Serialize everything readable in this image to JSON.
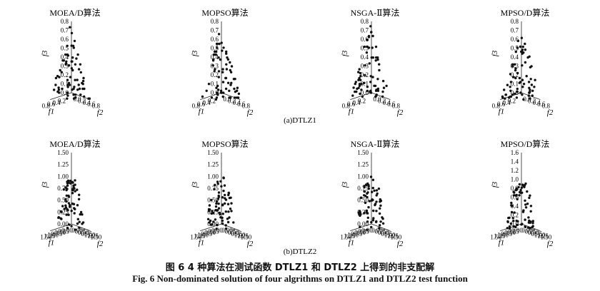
{
  "figure": {
    "caption_cn": "图 6   4 种算法在测试函数 DTLZ1 和 DTLZ2 上得到的非支配解",
    "caption_en": "Fig. 6   Non-dominated solution of four algrithms on DTLZ1 and DTLZ2 test function"
  },
  "chart_data": [
    {
      "type": "scatter",
      "panel": "(a)",
      "subtitle": "(a)DTLZ1",
      "title": "MOEA/D算法",
      "xlabel": "f1",
      "ylabel": "f2",
      "zlabel": "f3",
      "x_ticks": [
        "0.2",
        "0.4",
        "0.6",
        "0.8"
      ],
      "y_ticks": [
        "0.8",
        "0.6",
        "0.4",
        "0.2",
        "0.0"
      ],
      "z_ticks": [
        "0.0",
        "0.1",
        "0.2",
        "0.3",
        "0.4",
        "0.5",
        "0.6",
        "0.7",
        "0.8"
      ],
      "xlim": [
        0,
        0.8
      ],
      "ylim": [
        0,
        0.8
      ],
      "zlim": [
        0,
        0.8
      ],
      "front": "linear",
      "seed": 11,
      "points": []
    },
    {
      "type": "scatter",
      "panel": "(a)",
      "title": "MOPSO算法",
      "xlabel": "f1",
      "ylabel": "f2",
      "zlabel": "f3",
      "x_ticks": [
        "0.2",
        "0.4",
        "0.6",
        "0.8"
      ],
      "y_ticks": [
        "0.8",
        "0.6",
        "0.4",
        "0.2",
        "0.0"
      ],
      "z_ticks": [
        "0.0",
        "0.1",
        "0.2",
        "0.3",
        "0.4",
        "0.5",
        "0.6",
        "0.7",
        "0.8"
      ],
      "xlim": [
        0,
        0.8
      ],
      "ylim": [
        0,
        0.8
      ],
      "zlim": [
        0,
        0.8
      ],
      "front": "linear",
      "seed": 23,
      "points": []
    },
    {
      "type": "scatter",
      "panel": "(a)",
      "title": "NSGA-Ⅱ算法",
      "xlabel": "f1",
      "ylabel": "f2",
      "zlabel": "f3",
      "x_ticks": [
        "0.2",
        "0.4",
        "0.6",
        "0.8"
      ],
      "y_ticks": [
        "0.8",
        "0.6",
        "0.4",
        "0.2",
        "0.0"
      ],
      "z_ticks": [
        "0.0",
        "0.1",
        "0.2",
        "0.3",
        "0.4",
        "0.5",
        "0.6",
        "0.7",
        "0.8"
      ],
      "xlim": [
        0,
        0.8
      ],
      "ylim": [
        0,
        0.8
      ],
      "zlim": [
        0,
        0.8
      ],
      "front": "linear",
      "seed": 37,
      "points": []
    },
    {
      "type": "scatter",
      "panel": "(a)",
      "title": "MPSO/D算法",
      "xlabel": "f1",
      "ylabel": "f2",
      "zlabel": "f3",
      "x_ticks": [
        "0.2",
        "0.4",
        "0.6",
        "0.8"
      ],
      "y_ticks": [
        "0.8",
        "0.6",
        "0.4",
        "0.2",
        "0.0"
      ],
      "z_ticks": [
        "0.0",
        "0.1",
        "0.2",
        "0.3",
        "0.4",
        "0.5",
        "0.6",
        "0.7",
        "0.8"
      ],
      "xlim": [
        0,
        0.8
      ],
      "ylim": [
        0,
        0.8
      ],
      "zlim": [
        0,
        0.8
      ],
      "front": "linear",
      "seed": 53,
      "points": []
    },
    {
      "type": "scatter",
      "panel": "(b)",
      "subtitle": "(b)DTLZ2",
      "title": "MOEA/D算法",
      "xlabel": "f1",
      "ylabel": "f2",
      "zlabel": "f3",
      "x_ticks": [
        "0.00",
        "0.25",
        "0.50",
        "0.75",
        "1.00",
        "1.25",
        "1.50"
      ],
      "y_ticks": [
        "0.00",
        "0.25",
        "0.50",
        "0.75",
        "1.00",
        "1.25",
        "1.50"
      ],
      "z_ticks": [
        "0.00",
        "0.25",
        "0.50",
        "0.75",
        "1.00",
        "1.25",
        "1.50"
      ],
      "xlim": [
        0,
        1.5
      ],
      "ylim": [
        0,
        1.5
      ],
      "zlim": [
        0,
        1.5
      ],
      "front": "sphere",
      "seed": 61,
      "points": []
    },
    {
      "type": "scatter",
      "panel": "(b)",
      "title": "MOPSO算法",
      "xlabel": "f1",
      "ylabel": "f2",
      "zlabel": "f3",
      "x_ticks": [
        "0.00",
        "0.25",
        "0.50",
        "0.75",
        "1.00",
        "1.25",
        "1.50"
      ],
      "y_ticks": [
        "0.00",
        "0.25",
        "0.50",
        "0.75",
        "1.00",
        "1.25",
        "1.50"
      ],
      "z_ticks": [
        "0.00",
        "0.25",
        "0.50",
        "0.75",
        "1.00",
        "1.25",
        "1.50"
      ],
      "xlim": [
        0,
        1.5
      ],
      "ylim": [
        0,
        1.5
      ],
      "zlim": [
        0,
        1.5
      ],
      "front": "sphere",
      "seed": 73,
      "points": []
    },
    {
      "type": "scatter",
      "panel": "(b)",
      "title": "NSGA-Ⅱ算法",
      "xlabel": "f1",
      "ylabel": "f2",
      "zlabel": "f3",
      "x_ticks": [
        "0.00",
        "0.25",
        "0.50",
        "0.75",
        "1.00",
        "1.25",
        "1.50"
      ],
      "y_ticks": [
        "0.00",
        "0.25",
        "0.50",
        "0.75",
        "1.00",
        "1.25",
        "1.50"
      ],
      "z_ticks": [
        "0.00",
        "0.25",
        "0.50",
        "0.75",
        "1.00",
        "1.25",
        "1.50"
      ],
      "xlim": [
        0,
        1.5
      ],
      "ylim": [
        0,
        1.5
      ],
      "zlim": [
        0,
        1.5
      ],
      "front": "sphere",
      "seed": 89,
      "points": []
    },
    {
      "type": "scatter",
      "panel": "(b)",
      "title": "MPSO/D算法",
      "xlabel": "f1",
      "ylabel": "f2",
      "zlabel": "f3",
      "x_ticks": [
        "0.00",
        "0.25",
        "0.50",
        "0.75",
        "1.00",
        "1.25",
        "1.50"
      ],
      "y_ticks": [
        "0.00",
        "0.25",
        "0.50",
        "0.75",
        "1.00",
        "1.25",
        "1.50"
      ],
      "z_ticks": [
        "0.0",
        "0.2",
        "0.4",
        "0.6",
        "0.8",
        "1.0",
        "1.2",
        "1.4",
        "1.6"
      ],
      "xlim": [
        0,
        1.5
      ],
      "ylim": [
        0,
        1.5
      ],
      "zlim": [
        0,
        1.6
      ],
      "front": "sphere",
      "seed": 97,
      "points": []
    }
  ]
}
